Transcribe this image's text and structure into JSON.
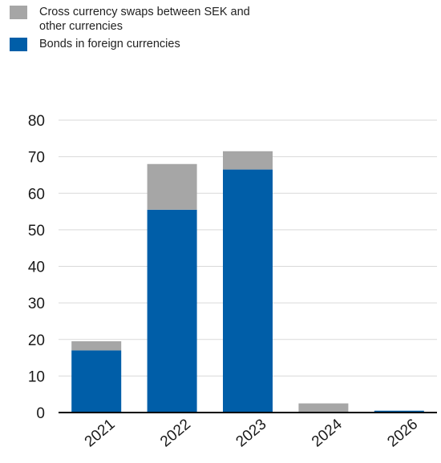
{
  "legend": {
    "items": [
      {
        "label": "Cross currency swaps between SEK and\nother currencies",
        "color": "#a6a6a6"
      },
      {
        "label": "Bonds in foreign currencies",
        "color": "#005ea8"
      }
    ]
  },
  "chart_data": {
    "type": "bar",
    "stacked": true,
    "categories": [
      "2021",
      "2022",
      "2023",
      "2024",
      "2026"
    ],
    "series": [
      {
        "name": "Bonds in foreign currencies",
        "color": "#005ea8",
        "values": [
          17,
          55.5,
          66.5,
          0,
          0.5
        ]
      },
      {
        "name": "Cross currency swaps between SEK and other currencies",
        "color": "#a6a6a6",
        "values": [
          2.5,
          12.5,
          5,
          2.5,
          0
        ]
      }
    ],
    "ylim": [
      0,
      80
    ],
    "yticks": [
      0,
      10,
      20,
      30,
      40,
      50,
      60,
      70,
      80
    ],
    "title": "",
    "xlabel": "",
    "ylabel": "",
    "grid": true,
    "legend_position": "top-left"
  }
}
